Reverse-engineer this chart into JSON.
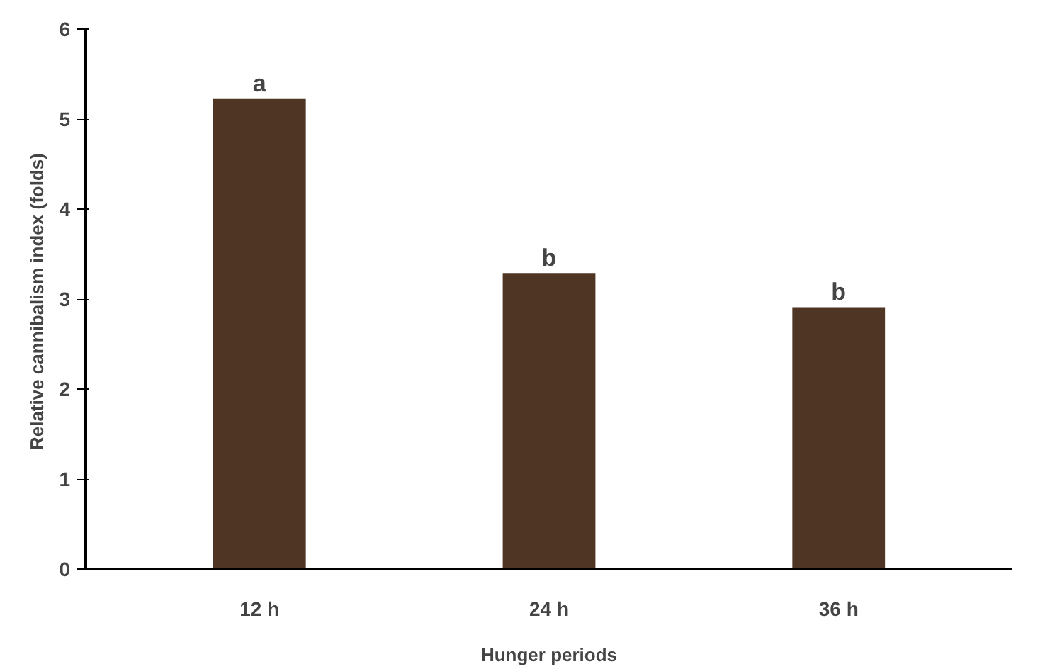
{
  "chart_data": {
    "type": "bar",
    "xlabel": "Hunger periods",
    "ylabel": "Relative cannibalism  index (folds)",
    "categories": [
      "12 h",
      "24 h",
      "36 h"
    ],
    "values": [
      5.23,
      3.29,
      2.91
    ],
    "color": "#4e3524",
    "ylim": [
      0,
      6
    ],
    "yticks": [
      0,
      1,
      2,
      3,
      4,
      5,
      6
    ],
    "grid": false,
    "annotations": [
      {
        "text": "a",
        "x": "12 h",
        "y": 5.23
      },
      {
        "text": "b",
        "x": "24 h",
        "y": 3.29
      },
      {
        "text": "b",
        "x": "36 h",
        "y": 2.91
      }
    ]
  }
}
